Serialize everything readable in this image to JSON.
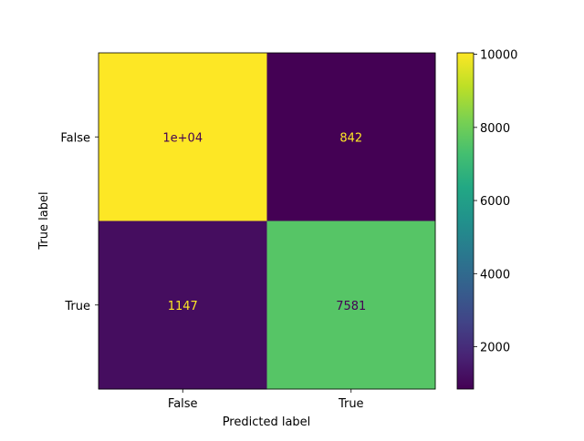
{
  "chart_data": {
    "type": "heatmap",
    "title": "",
    "xlabel": "Predicted label",
    "ylabel": "True label",
    "x_categories": [
      "False",
      "True"
    ],
    "y_categories": [
      "False",
      "True"
    ],
    "values": [
      [
        10040,
        842
      ],
      [
        1147,
        7581
      ]
    ],
    "cell_labels": [
      [
        "1e+04",
        "842"
      ],
      [
        "1147",
        "7581"
      ]
    ],
    "colormap": "viridis",
    "colorbar": {
      "range": [
        842,
        10040
      ],
      "ticks": [
        2000,
        4000,
        6000,
        8000,
        10000
      ],
      "tick_labels": [
        "2000",
        "4000",
        "6000",
        "8000",
        "10000"
      ]
    },
    "colors": {
      "dark_cell_text": "#fde725",
      "light_cell_text": "#440154",
      "axis": "#000000"
    }
  }
}
